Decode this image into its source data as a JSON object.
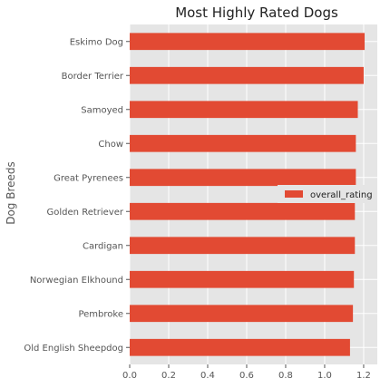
{
  "chart_data": {
    "type": "bar",
    "orientation": "horizontal",
    "title": "Most Highly Rated Dogs",
    "xlabel": "",
    "ylabel": "Dog Breeds",
    "categories": [
      "Eskimo Dog",
      "Border Terrier",
      "Samoyed",
      "Chow",
      "Great Pyrenees",
      "Golden Retriever",
      "Cardigan",
      "Norwegian Elkhound",
      "Pembroke",
      "Old English Sheepdog"
    ],
    "series": [
      {
        "name": "overall_rating",
        "values": [
          1.205,
          1.2,
          1.17,
          1.16,
          1.16,
          1.155,
          1.155,
          1.15,
          1.145,
          1.13
        ]
      }
    ],
    "xlim": [
      0,
      1.27
    ],
    "xticks": [
      "0.0",
      "0.2",
      "0.4",
      "0.6",
      "0.8",
      "1.0",
      "1.2"
    ],
    "grid": true,
    "legend_position": "right",
    "colors": {
      "bar": "#e24a33",
      "plot_bg": "#e5e5e5",
      "grid": "#ffffff"
    }
  }
}
